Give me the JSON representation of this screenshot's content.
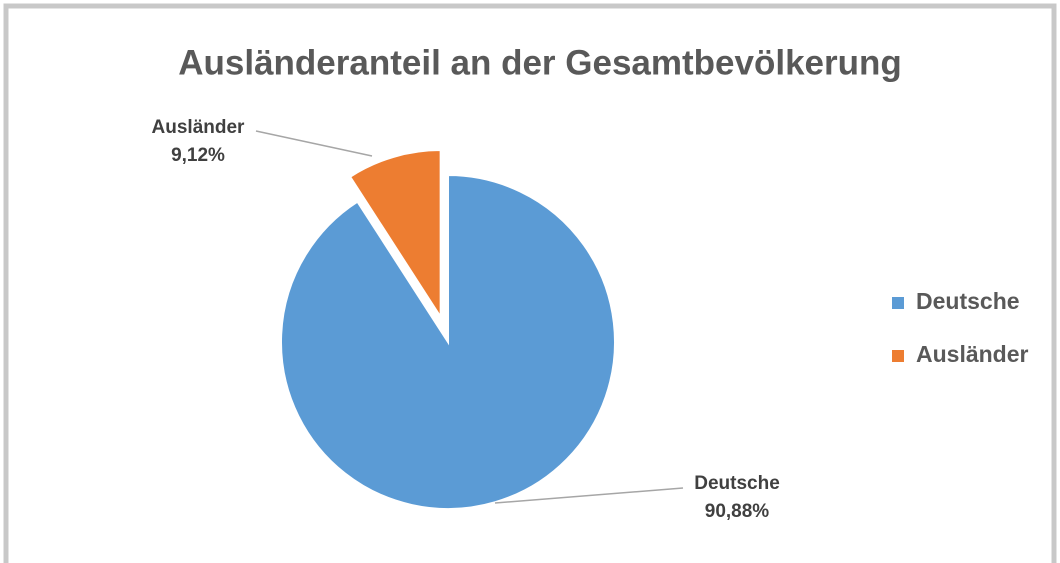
{
  "chart_data": {
    "type": "pie",
    "title": "Ausländeranteil an der Gesamtbevölkerung",
    "categories": [
      "Deutsche",
      "Ausländer"
    ],
    "values": [
      90.88,
      9.12
    ],
    "value_labels": [
      "90,88%",
      "9,12%"
    ],
    "colors": [
      "#5b9bd5",
      "#ed7d31"
    ],
    "explode": [
      false,
      true
    ],
    "legend": "right"
  }
}
